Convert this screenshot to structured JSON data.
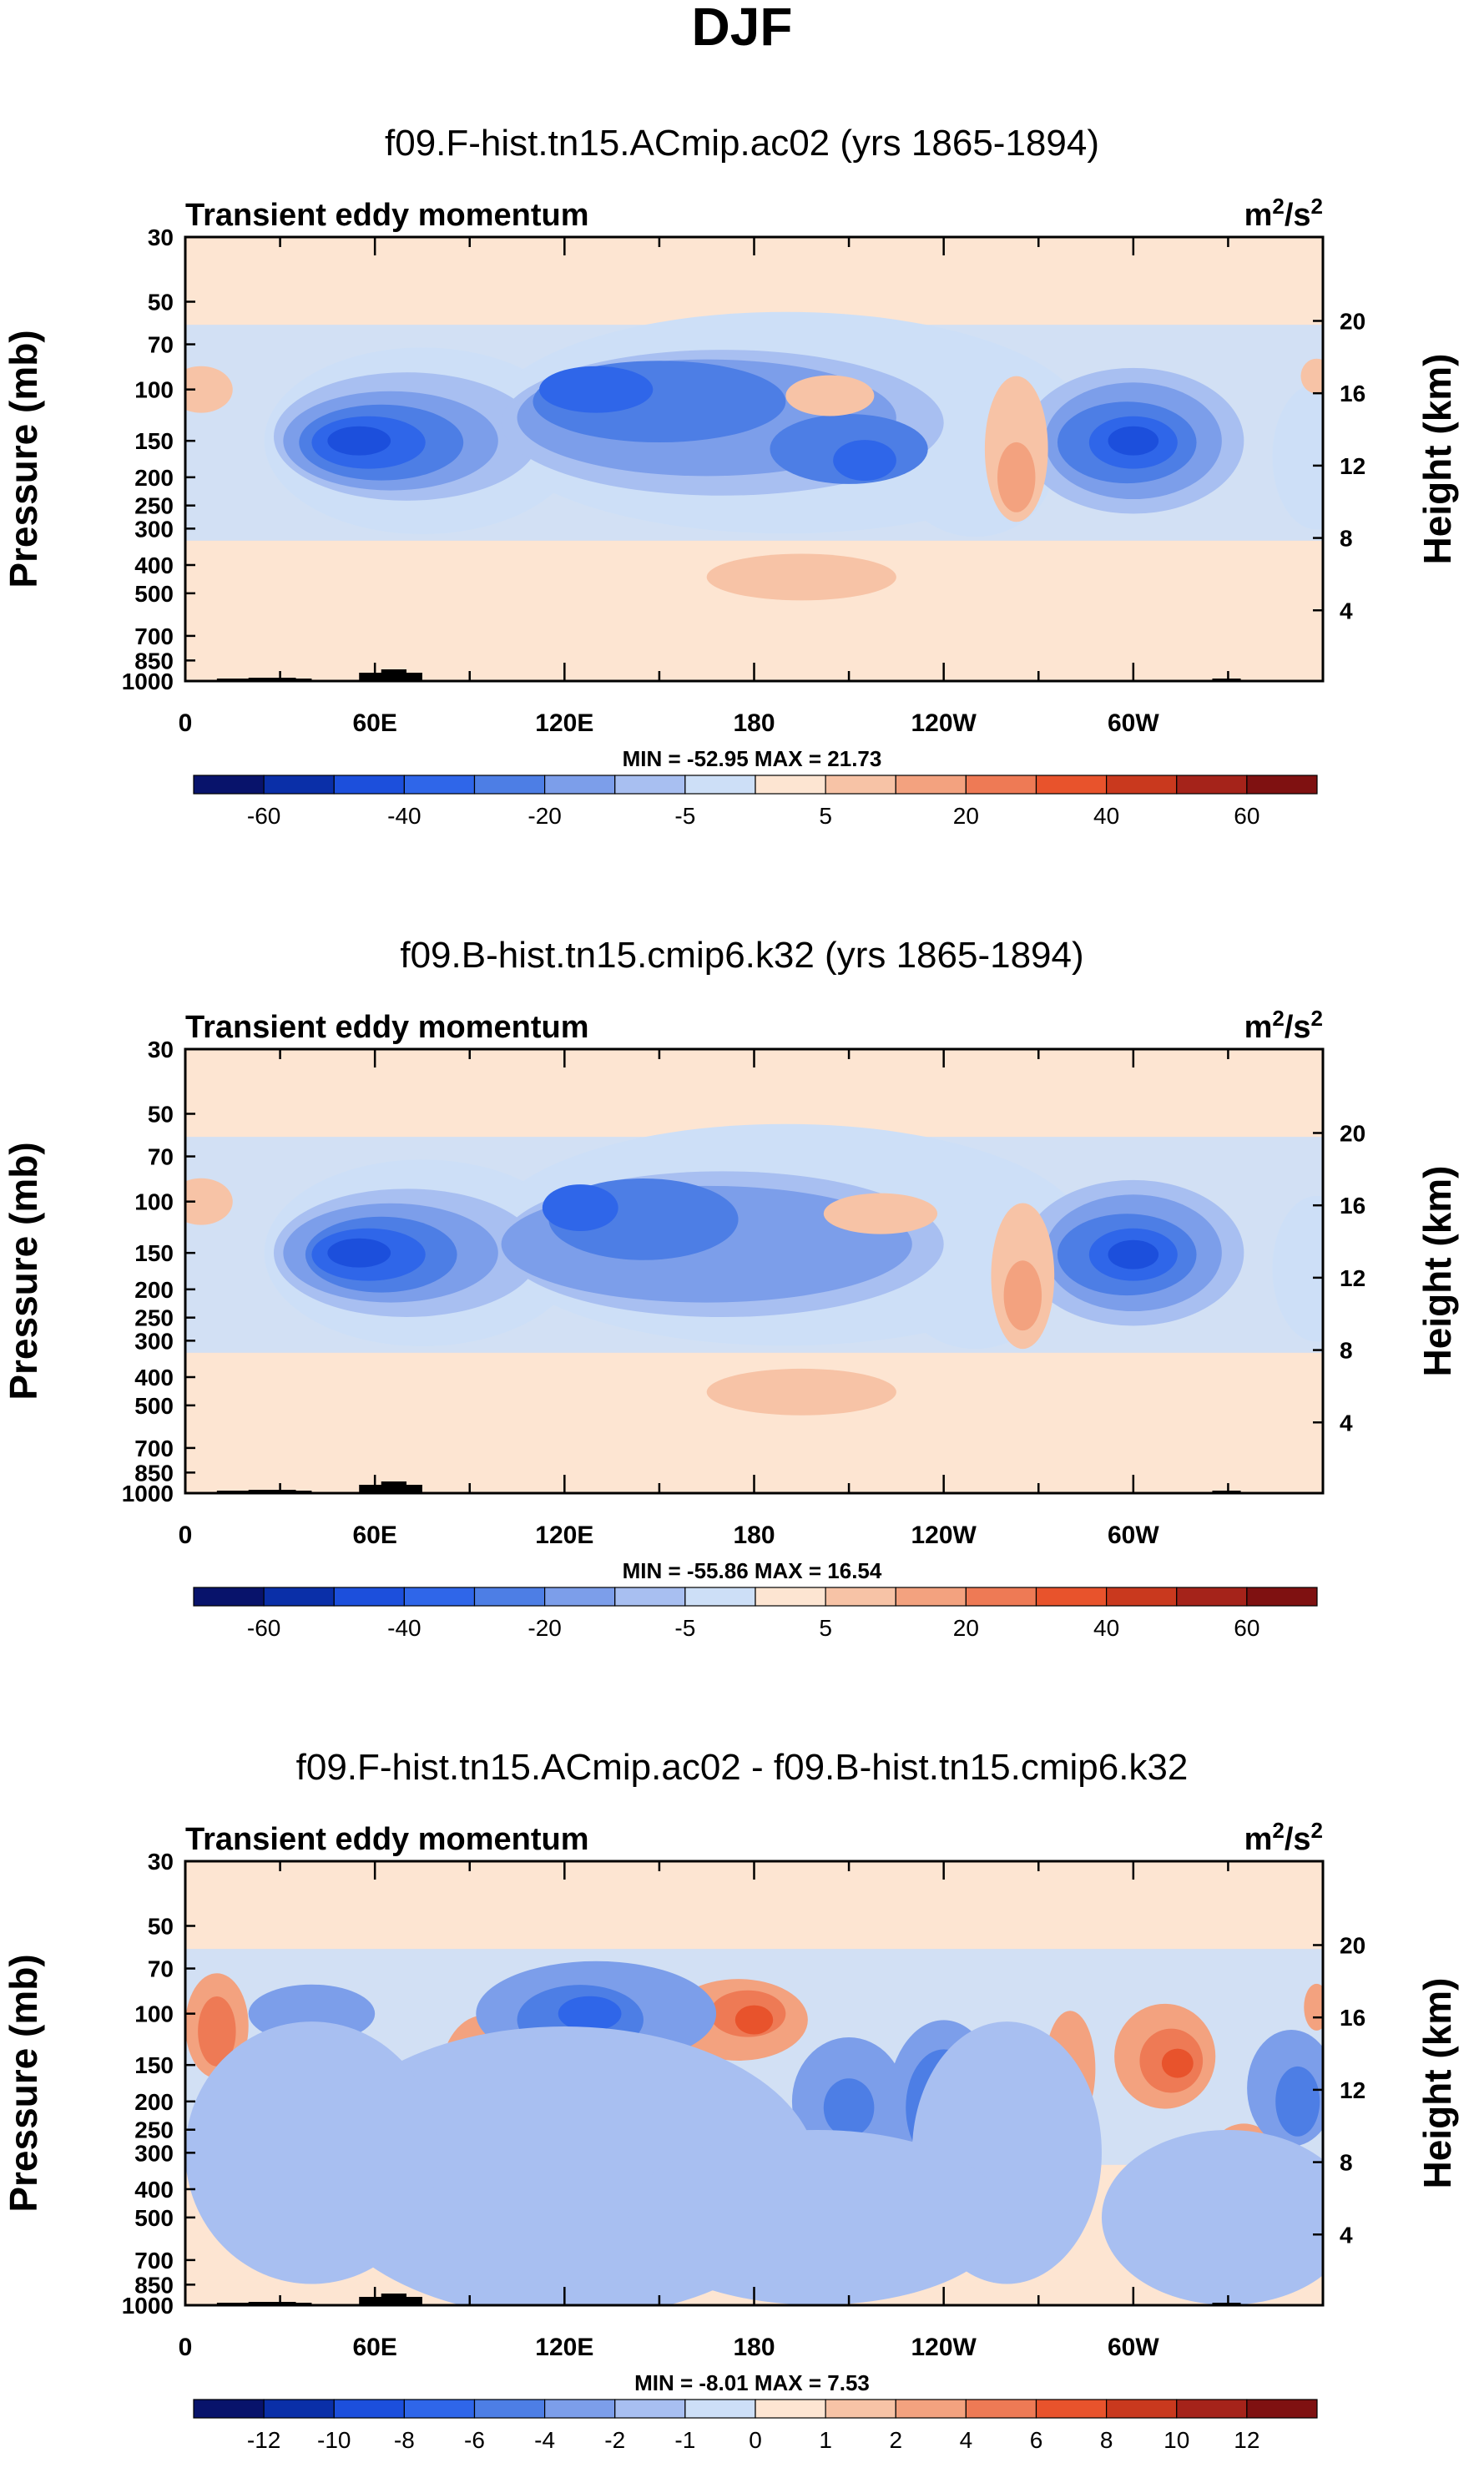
{
  "figure": {
    "title": "DJF"
  },
  "colors": {
    "abs_scale": [
      "#08136b",
      "#0a2fa8",
      "#1c4fdc",
      "#2f66e9",
      "#4d7ee5",
      "#7c9eea",
      "#a8bff1",
      "#cddff7",
      "#fde5d2",
      "#f7c3a6",
      "#f3a27f",
      "#ee7a55",
      "#e8532c",
      "#c9391e",
      "#a5231a",
      "#7f1111"
    ],
    "terrain": "#000000"
  },
  "chart_data": [
    {
      "type": "heatmap",
      "title": "f09.F-hist.tn15.ACmip.ac02 (yrs 1865-1894)",
      "subtitle_left": "Transient eddy momentum",
      "units_base": "m",
      "units_exp1": "2",
      "units_mid": "/s",
      "units_exp2": "2",
      "xlabel": "",
      "ylabel": "Pressure (mb)",
      "ylabel_right": "Height (km)",
      "x_ticks": [
        "0",
        "60E",
        "120E",
        "180",
        "120W",
        "60W"
      ],
      "y_ticks": [
        "30",
        "50",
        "70",
        "100",
        "150",
        "200",
        "250",
        "300",
        "400",
        "500",
        "700",
        "850",
        "1000"
      ],
      "y_right_ticks": [
        "20",
        "16",
        "12",
        "8",
        "4"
      ],
      "min_max_text": "MIN = -52.95   MAX =  21.73",
      "colorbar_labels": [
        "-60",
        "-40",
        "-20",
        "-5",
        "5",
        "20",
        "40",
        "60"
      ],
      "ylim": [
        1000,
        30
      ]
    },
    {
      "type": "heatmap",
      "title": "f09.B-hist.tn15.cmip6.k32 (yrs 1865-1894)",
      "subtitle_left": "Transient eddy momentum",
      "units_base": "m",
      "units_exp1": "2",
      "units_mid": "/s",
      "units_exp2": "2",
      "xlabel": "",
      "ylabel": "Pressure (mb)",
      "ylabel_right": "Height (km)",
      "x_ticks": [
        "0",
        "60E",
        "120E",
        "180",
        "120W",
        "60W"
      ],
      "y_ticks": [
        "30",
        "50",
        "70",
        "100",
        "150",
        "200",
        "250",
        "300",
        "400",
        "500",
        "700",
        "850",
        "1000"
      ],
      "y_right_ticks": [
        "20",
        "16",
        "12",
        "8",
        "4"
      ],
      "min_max_text": "MIN = -55.86   MAX =  16.54",
      "colorbar_labels": [
        "-60",
        "-40",
        "-20",
        "-5",
        "5",
        "20",
        "40",
        "60"
      ],
      "ylim": [
        1000,
        30
      ]
    },
    {
      "type": "heatmap",
      "title": "f09.F-hist.tn15.ACmip.ac02 - f09.B-hist.tn15.cmip6.k32",
      "subtitle_left": "Transient eddy momentum",
      "units_base": "m",
      "units_exp1": "2",
      "units_mid": "/s",
      "units_exp2": "2",
      "xlabel": "",
      "ylabel": "Pressure (mb)",
      "ylabel_right": "Height (km)",
      "x_ticks": [
        "0",
        "60E",
        "120E",
        "180",
        "120W",
        "60W"
      ],
      "y_ticks": [
        "30",
        "50",
        "70",
        "100",
        "150",
        "200",
        "250",
        "300",
        "400",
        "500",
        "700",
        "850",
        "1000"
      ],
      "y_right_ticks": [
        "20",
        "16",
        "12",
        "8",
        "4"
      ],
      "min_max_text": "MIN =  -8.01   MAX =  7.53",
      "colorbar_labels": [
        "-12",
        "-10",
        "-8",
        "-6",
        "-4",
        "-2",
        "-1",
        "0",
        "1",
        "2",
        "4",
        "6",
        "8",
        "10",
        "12"
      ],
      "ylim": [
        1000,
        30
      ]
    }
  ]
}
